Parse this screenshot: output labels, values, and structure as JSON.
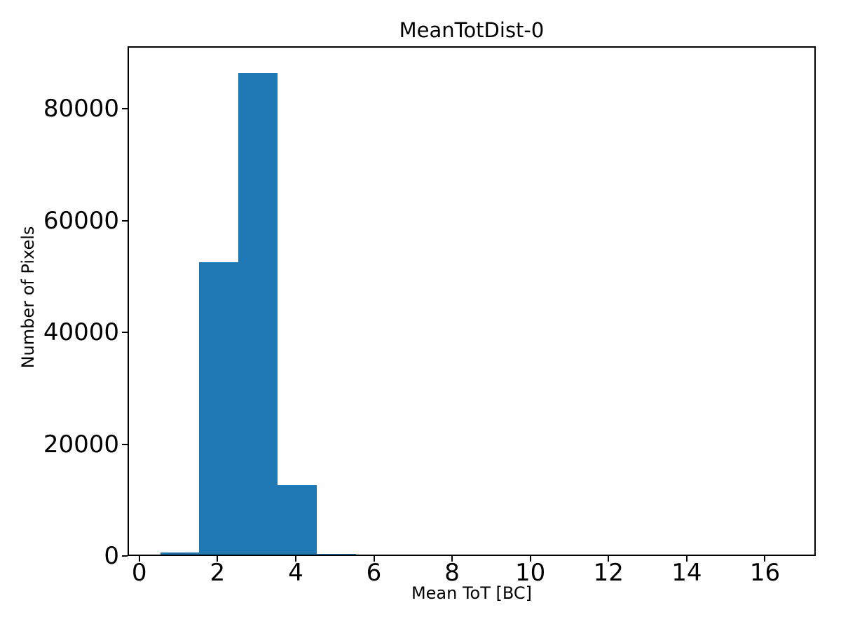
{
  "figure": {
    "background": "#ffffff",
    "text_color": "#000000"
  },
  "chart_data": {
    "type": "bar",
    "subtype": "histogram",
    "title": "MeanTotDist-0",
    "xlabel": "Mean ToT [BC]",
    "ylabel": "Number of Pixels",
    "bar_color": "#1f77b4",
    "bin_edges": [
      0.5,
      1.5,
      2.5,
      3.5,
      4.5,
      5.5,
      6.5,
      7.5,
      8.5,
      9.5,
      10.5,
      11.5,
      12.5,
      13.5,
      14.5,
      15.5,
      16.5
    ],
    "counts": [
      900,
      52800,
      86700,
      12900,
      600,
      0,
      0,
      0,
      0,
      0,
      0,
      0,
      0,
      0,
      0,
      0
    ],
    "xlim": [
      -0.3,
      17.3
    ],
    "ylim": [
      0,
      91200
    ],
    "xticks": [
      0,
      2,
      4,
      6,
      8,
      10,
      12,
      14,
      16
    ],
    "xtick_labels": [
      "0",
      "2",
      "4",
      "6",
      "8",
      "10",
      "12",
      "14",
      "16"
    ],
    "yticks": [
      0,
      20000,
      40000,
      60000,
      80000
    ],
    "ytick_labels": [
      "0",
      "20000",
      "40000",
      "60000",
      "80000"
    ],
    "grid": false,
    "legend": null
  }
}
